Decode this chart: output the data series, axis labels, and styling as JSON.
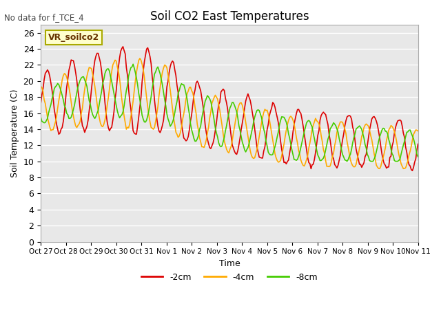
{
  "title": "Soil CO2 East Temperatures",
  "no_data_label": "No data for f_TCE_4",
  "box_label": "VR_soilco2",
  "xlabel": "Time",
  "ylabel": "Soil Temperature (C)",
  "ylim": [
    0,
    27
  ],
  "yticks": [
    0,
    2,
    4,
    6,
    8,
    10,
    12,
    14,
    16,
    18,
    20,
    22,
    24,
    26
  ],
  "xtick_labels": [
    "Oct 27",
    "Oct 28",
    "Oct 29",
    "Oct 30",
    "Oct 31",
    "Nov 1",
    "Nov 2",
    "Nov 3",
    "Nov 4",
    "Nov 5",
    "Nov 6",
    "Nov 7",
    "Nov 8",
    "Nov 9",
    "Nov 10",
    "Nov 11"
  ],
  "colors": {
    "red": "#dd0000",
    "orange": "#ffaa00",
    "green": "#44cc00",
    "bg_plot": "#e8e8e8",
    "grid": "#ffffff",
    "box_bg": "#ffffcc",
    "box_border": "#aaaa00"
  },
  "legend": [
    "-2cm",
    "-4cm",
    "-8cm"
  ],
  "n_points": 336
}
